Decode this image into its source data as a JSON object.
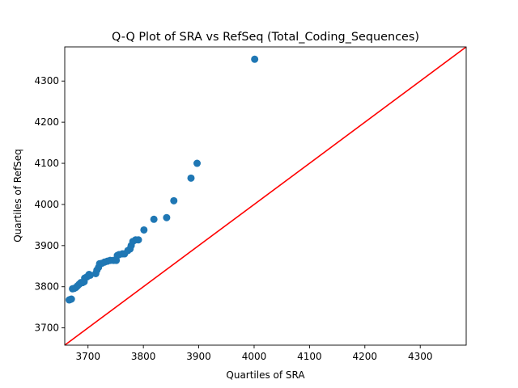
{
  "chart_data": {
    "type": "scatter",
    "title": "Q-Q Plot of SRA vs RefSeq (Total_Coding_Sequences)",
    "xlabel": "Quartiles of SRA",
    "ylabel": "Quartiles of RefSeq",
    "xlim": [
      3658,
      4383
    ],
    "ylim": [
      3658,
      4383
    ],
    "xticks": [
      "3700",
      "3800",
      "3900",
      "4000",
      "4100",
      "4200",
      "4300"
    ],
    "yticks": [
      "3700",
      "3800",
      "3900",
      "4000",
      "4100",
      "4200",
      "4300"
    ],
    "grid": false,
    "legend": "none",
    "colors": {
      "points": "#1f77b4",
      "reference_line": "#ff0000"
    },
    "reference_line": {
      "from": [
        3658,
        3658
      ],
      "to": [
        4383,
        4383
      ]
    },
    "points": [
      {
        "x": 3666,
        "y": 3768
      },
      {
        "x": 3668,
        "y": 3769
      },
      {
        "x": 3670,
        "y": 3770
      },
      {
        "x": 3672,
        "y": 3795
      },
      {
        "x": 3675,
        "y": 3796
      },
      {
        "x": 3678,
        "y": 3798
      },
      {
        "x": 3681,
        "y": 3802
      },
      {
        "x": 3684,
        "y": 3806
      },
      {
        "x": 3687,
        "y": 3810
      },
      {
        "x": 3690,
        "y": 3810
      },
      {
        "x": 3693,
        "y": 3812
      },
      {
        "x": 3694,
        "y": 3821
      },
      {
        "x": 3698,
        "y": 3824
      },
      {
        "x": 3702,
        "y": 3830
      },
      {
        "x": 3704,
        "y": 3828
      },
      {
        "x": 3714,
        "y": 3832
      },
      {
        "x": 3716,
        "y": 3840
      },
      {
        "x": 3719,
        "y": 3847
      },
      {
        "x": 3721,
        "y": 3856
      },
      {
        "x": 3725,
        "y": 3857
      },
      {
        "x": 3730,
        "y": 3860
      },
      {
        "x": 3735,
        "y": 3862
      },
      {
        "x": 3740,
        "y": 3864
      },
      {
        "x": 3746,
        "y": 3864
      },
      {
        "x": 3751,
        "y": 3864
      },
      {
        "x": 3753,
        "y": 3876
      },
      {
        "x": 3756,
        "y": 3878
      },
      {
        "x": 3762,
        "y": 3880
      },
      {
        "x": 3766,
        "y": 3880
      },
      {
        "x": 3772,
        "y": 3888
      },
      {
        "x": 3776,
        "y": 3892
      },
      {
        "x": 3778,
        "y": 3900
      },
      {
        "x": 3781,
        "y": 3910
      },
      {
        "x": 3786,
        "y": 3914
      },
      {
        "x": 3791,
        "y": 3914
      },
      {
        "x": 3801,
        "y": 3938
      },
      {
        "x": 3819,
        "y": 3964
      },
      {
        "x": 3842,
        "y": 3968
      },
      {
        "x": 3855,
        "y": 4009
      },
      {
        "x": 3886,
        "y": 4064
      },
      {
        "x": 3897,
        "y": 4100
      },
      {
        "x": 4001,
        "y": 4353
      }
    ]
  }
}
